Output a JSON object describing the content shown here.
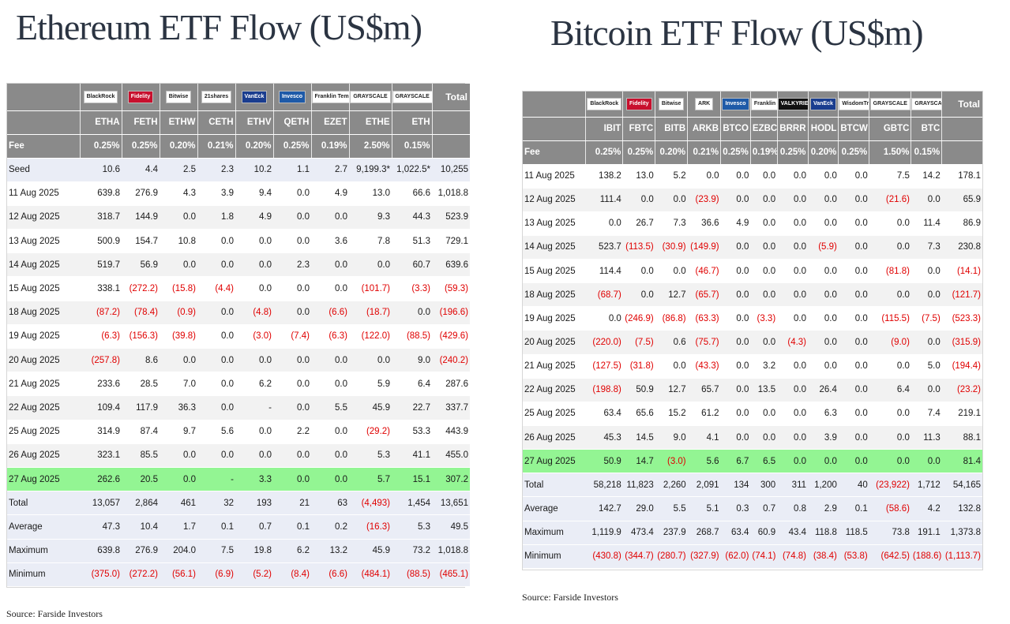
{
  "eth": {
    "title": "Ethereum ETF Flow (US$m)",
    "issuers": [
      "BlackRock",
      "Fidelity",
      "Bitwise",
      "21shares",
      "VanEck",
      "Invesco",
      "Franklin Templeton",
      "GRAYSCALE",
      "GRAYSCALE"
    ],
    "total_label": "Total",
    "tickers": [
      "ETHA",
      "FETH",
      "ETHW",
      "CETH",
      "ETHV",
      "QETH",
      "EZET",
      "ETHE",
      "ETH"
    ],
    "fee_label": "Fee",
    "fees": [
      "0.25%",
      "0.25%",
      "0.20%",
      "0.21%",
      "0.20%",
      "0.25%",
      "0.19%",
      "2.50%",
      "0.15%"
    ],
    "rows": [
      {
        "date": "Seed",
        "type": "seed",
        "values": [
          "10.6",
          "4.4",
          "2.5",
          "2.3",
          "10.2",
          "1.1",
          "2.7",
          "9,199.3*",
          "1,022.5*",
          "10,255"
        ]
      },
      {
        "date": "11 Aug 2025",
        "type": "data",
        "values": [
          "639.8",
          "276.9",
          "4.3",
          "3.9",
          "9.4",
          "0.0",
          "4.9",
          "13.0",
          "66.6",
          "1,018.8"
        ]
      },
      {
        "date": "12 Aug 2025",
        "type": "data",
        "values": [
          "318.7",
          "144.9",
          "0.0",
          "1.8",
          "4.9",
          "0.0",
          "0.0",
          "9.3",
          "44.3",
          "523.9"
        ]
      },
      {
        "date": "13 Aug 2025",
        "type": "data",
        "values": [
          "500.9",
          "154.7",
          "10.8",
          "0.0",
          "0.0",
          "0.0",
          "3.6",
          "7.8",
          "51.3",
          "729.1"
        ]
      },
      {
        "date": "14 Aug 2025",
        "type": "data",
        "values": [
          "519.7",
          "56.9",
          "0.0",
          "0.0",
          "0.0",
          "2.3",
          "0.0",
          "0.0",
          "60.7",
          "639.6"
        ]
      },
      {
        "date": "15 Aug 2025",
        "type": "data",
        "values": [
          "338.1",
          "(272.2)",
          "(15.8)",
          "(4.4)",
          "0.0",
          "0.0",
          "0.0",
          "(101.7)",
          "(3.3)",
          "(59.3)"
        ]
      },
      {
        "date": "18 Aug 2025",
        "type": "data",
        "values": [
          "(87.2)",
          "(78.4)",
          "(0.9)",
          "0.0",
          "(4.8)",
          "0.0",
          "(6.6)",
          "(18.7)",
          "0.0",
          "(196.6)"
        ]
      },
      {
        "date": "19 Aug 2025",
        "type": "data",
        "values": [
          "(6.3)",
          "(156.3)",
          "(39.8)",
          "0.0",
          "(3.0)",
          "(7.4)",
          "(6.3)",
          "(122.0)",
          "(88.5)",
          "(429.6)"
        ]
      },
      {
        "date": "20 Aug 2025",
        "type": "data",
        "values": [
          "(257.8)",
          "8.6",
          "0.0",
          "0.0",
          "0.0",
          "0.0",
          "0.0",
          "0.0",
          "9.0",
          "(240.2)"
        ]
      },
      {
        "date": "21 Aug 2025",
        "type": "data",
        "values": [
          "233.6",
          "28.5",
          "7.0",
          "0.0",
          "6.2",
          "0.0",
          "0.0",
          "5.9",
          "6.4",
          "287.6"
        ]
      },
      {
        "date": "22 Aug 2025",
        "type": "data",
        "values": [
          "109.4",
          "117.9",
          "36.3",
          "0.0",
          "-",
          "0.0",
          "5.5",
          "45.9",
          "22.7",
          "337.7"
        ]
      },
      {
        "date": "25 Aug 2025",
        "type": "data",
        "values": [
          "314.9",
          "87.4",
          "9.7",
          "5.6",
          "0.0",
          "2.2",
          "0.0",
          "(29.2)",
          "53.3",
          "443.9"
        ]
      },
      {
        "date": "26 Aug 2025",
        "type": "data",
        "values": [
          "323.1",
          "85.5",
          "0.0",
          "0.0",
          "0.0",
          "0.0",
          "0.0",
          "5.3",
          "41.1",
          "455.0"
        ]
      },
      {
        "date": "27 Aug 2025",
        "type": "highlight",
        "values": [
          "262.6",
          "20.5",
          "0.0",
          "-",
          "3.3",
          "0.0",
          "0.0",
          "5.7",
          "15.1",
          "307.2"
        ]
      },
      {
        "date": "Total",
        "type": "summary",
        "values": [
          "13,057",
          "2,864",
          "461",
          "32",
          "193",
          "21",
          "63",
          "(4,493)",
          "1,454",
          "13,651"
        ]
      },
      {
        "date": "Average",
        "type": "summary",
        "values": [
          "47.3",
          "10.4",
          "1.7",
          "0.1",
          "0.7",
          "0.1",
          "0.2",
          "(16.3)",
          "5.3",
          "49.5"
        ]
      },
      {
        "date": "Maximum",
        "type": "summary",
        "values": [
          "639.8",
          "276.9",
          "204.0",
          "7.5",
          "19.8",
          "6.2",
          "13.2",
          "45.9",
          "73.2",
          "1,018.8"
        ]
      },
      {
        "date": "Minimum",
        "type": "summary",
        "values": [
          "(375.0)",
          "(272.2)",
          "(56.1)",
          "(6.9)",
          "(5.2)",
          "(8.4)",
          "(6.6)",
          "(484.1)",
          "(88.5)",
          "(465.1)"
        ]
      }
    ],
    "source": "Source: Farside Investors"
  },
  "btc": {
    "title": "Bitcoin ETF Flow (US$m)",
    "issuers": [
      "BlackRock",
      "Fidelity",
      "Bitwise",
      "ARK",
      "Invesco",
      "Franklin Templeton",
      "VALKYRIE",
      "VanEck",
      "WisdomTree",
      "GRAYSCALE",
      "GRAYSCALE"
    ],
    "total_label": "Total",
    "tickers": [
      "IBIT",
      "FBTC",
      "BITB",
      "ARKB",
      "BTCO",
      "EZBC",
      "BRRR",
      "HODL",
      "BTCW",
      "GBTC",
      "BTC"
    ],
    "fee_label": "Fee",
    "fees": [
      "0.25%",
      "0.25%",
      "0.20%",
      "0.21%",
      "0.25%",
      "0.19%",
      "0.25%",
      "0.20%",
      "0.25%",
      "1.50%",
      "0.15%"
    ],
    "rows": [
      {
        "date": "11 Aug 2025",
        "type": "data",
        "values": [
          "138.2",
          "13.0",
          "5.2",
          "0.0",
          "0.0",
          "0.0",
          "0.0",
          "0.0",
          "0.0",
          "7.5",
          "14.2",
          "178.1"
        ]
      },
      {
        "date": "12 Aug 2025",
        "type": "data",
        "values": [
          "111.4",
          "0.0",
          "0.0",
          "(23.9)",
          "0.0",
          "0.0",
          "0.0",
          "0.0",
          "0.0",
          "(21.6)",
          "0.0",
          "65.9"
        ]
      },
      {
        "date": "13 Aug 2025",
        "type": "data",
        "values": [
          "0.0",
          "26.7",
          "7.3",
          "36.6",
          "4.9",
          "0.0",
          "0.0",
          "0.0",
          "0.0",
          "0.0",
          "11.4",
          "86.9"
        ]
      },
      {
        "date": "14 Aug 2025",
        "type": "data",
        "values": [
          "523.7",
          "(113.5)",
          "(30.9)",
          "(149.9)",
          "0.0",
          "0.0",
          "0.0",
          "(5.9)",
          "0.0",
          "0.0",
          "7.3",
          "230.8"
        ]
      },
      {
        "date": "15 Aug 2025",
        "type": "data",
        "values": [
          "114.4",
          "0.0",
          "0.0",
          "(46.7)",
          "0.0",
          "0.0",
          "0.0",
          "0.0",
          "0.0",
          "(81.8)",
          "0.0",
          "(14.1)"
        ]
      },
      {
        "date": "18 Aug 2025",
        "type": "data",
        "values": [
          "(68.7)",
          "0.0",
          "12.7",
          "(65.7)",
          "0.0",
          "0.0",
          "0.0",
          "0.0",
          "0.0",
          "0.0",
          "0.0",
          "(121.7)"
        ]
      },
      {
        "date": "19 Aug 2025",
        "type": "data",
        "values": [
          "0.0",
          "(246.9)",
          "(86.8)",
          "(63.3)",
          "0.0",
          "(3.3)",
          "0.0",
          "0.0",
          "0.0",
          "(115.5)",
          "(7.5)",
          "(523.3)"
        ]
      },
      {
        "date": "20 Aug 2025",
        "type": "data",
        "values": [
          "(220.0)",
          "(7.5)",
          "0.6",
          "(75.7)",
          "0.0",
          "0.0",
          "(4.3)",
          "0.0",
          "0.0",
          "(9.0)",
          "0.0",
          "(315.9)"
        ]
      },
      {
        "date": "21 Aug 2025",
        "type": "data",
        "values": [
          "(127.5)",
          "(31.8)",
          "0.0",
          "(43.3)",
          "0.0",
          "3.2",
          "0.0",
          "0.0",
          "0.0",
          "0.0",
          "5.0",
          "(194.4)"
        ]
      },
      {
        "date": "22 Aug 2025",
        "type": "data",
        "values": [
          "(198.8)",
          "50.9",
          "12.7",
          "65.7",
          "0.0",
          "13.5",
          "0.0",
          "26.4",
          "0.0",
          "6.4",
          "0.0",
          "(23.2)"
        ]
      },
      {
        "date": "25 Aug 2025",
        "type": "data",
        "values": [
          "63.4",
          "65.6",
          "15.2",
          "61.2",
          "0.0",
          "0.0",
          "0.0",
          "6.3",
          "0.0",
          "0.0",
          "7.4",
          "219.1"
        ]
      },
      {
        "date": "26 Aug 2025",
        "type": "data",
        "values": [
          "45.3",
          "14.5",
          "9.0",
          "4.1",
          "0.0",
          "0.0",
          "0.0",
          "3.9",
          "0.0",
          "0.0",
          "11.3",
          "88.1"
        ]
      },
      {
        "date": "27 Aug 2025",
        "type": "highlight",
        "values": [
          "50.9",
          "14.7",
          "(3.0)",
          "5.6",
          "6.7",
          "6.5",
          "0.0",
          "0.0",
          "0.0",
          "0.0",
          "0.0",
          "81.4"
        ]
      },
      {
        "date": "Total",
        "type": "summary",
        "values": [
          "58,218",
          "11,823",
          "2,260",
          "2,091",
          "134",
          "300",
          "311",
          "1,200",
          "40",
          "(23,922)",
          "1,712",
          "54,165"
        ]
      },
      {
        "date": "Average",
        "type": "summary",
        "values": [
          "142.7",
          "29.0",
          "5.5",
          "5.1",
          "0.3",
          "0.7",
          "0.8",
          "2.9",
          "0.1",
          "(58.6)",
          "4.2",
          "132.8"
        ]
      },
      {
        "date": "Maximum",
        "type": "summary",
        "values": [
          "1,119.9",
          "473.4",
          "237.9",
          "268.7",
          "63.4",
          "60.9",
          "43.4",
          "118.8",
          "118.5",
          "73.8",
          "191.1",
          "1,373.8"
        ]
      },
      {
        "date": "Minimum",
        "type": "summary",
        "values": [
          "(430.8)",
          "(344.7)",
          "(280.7)",
          "(327.9)",
          "(62.0)",
          "(74.1)",
          "(74.8)",
          "(38.4)",
          "(53.8)",
          "(642.5)",
          "(188.6)",
          "(1,113.7)"
        ]
      }
    ],
    "source": "Source: Farside Investors"
  },
  "colors": {
    "header_bg": "#8a8a8a",
    "highlight_row": "#93f593",
    "summary_bg": "#eaedf6",
    "negative": "#e00000",
    "title": "#2b3442"
  },
  "issuer_logo_colors": {
    "Fidelity": "#c8102e",
    "VanEck": "#1a3d8f",
    "Invesco": "#1e5aa8",
    "VALKYRIE": "#111111"
  }
}
